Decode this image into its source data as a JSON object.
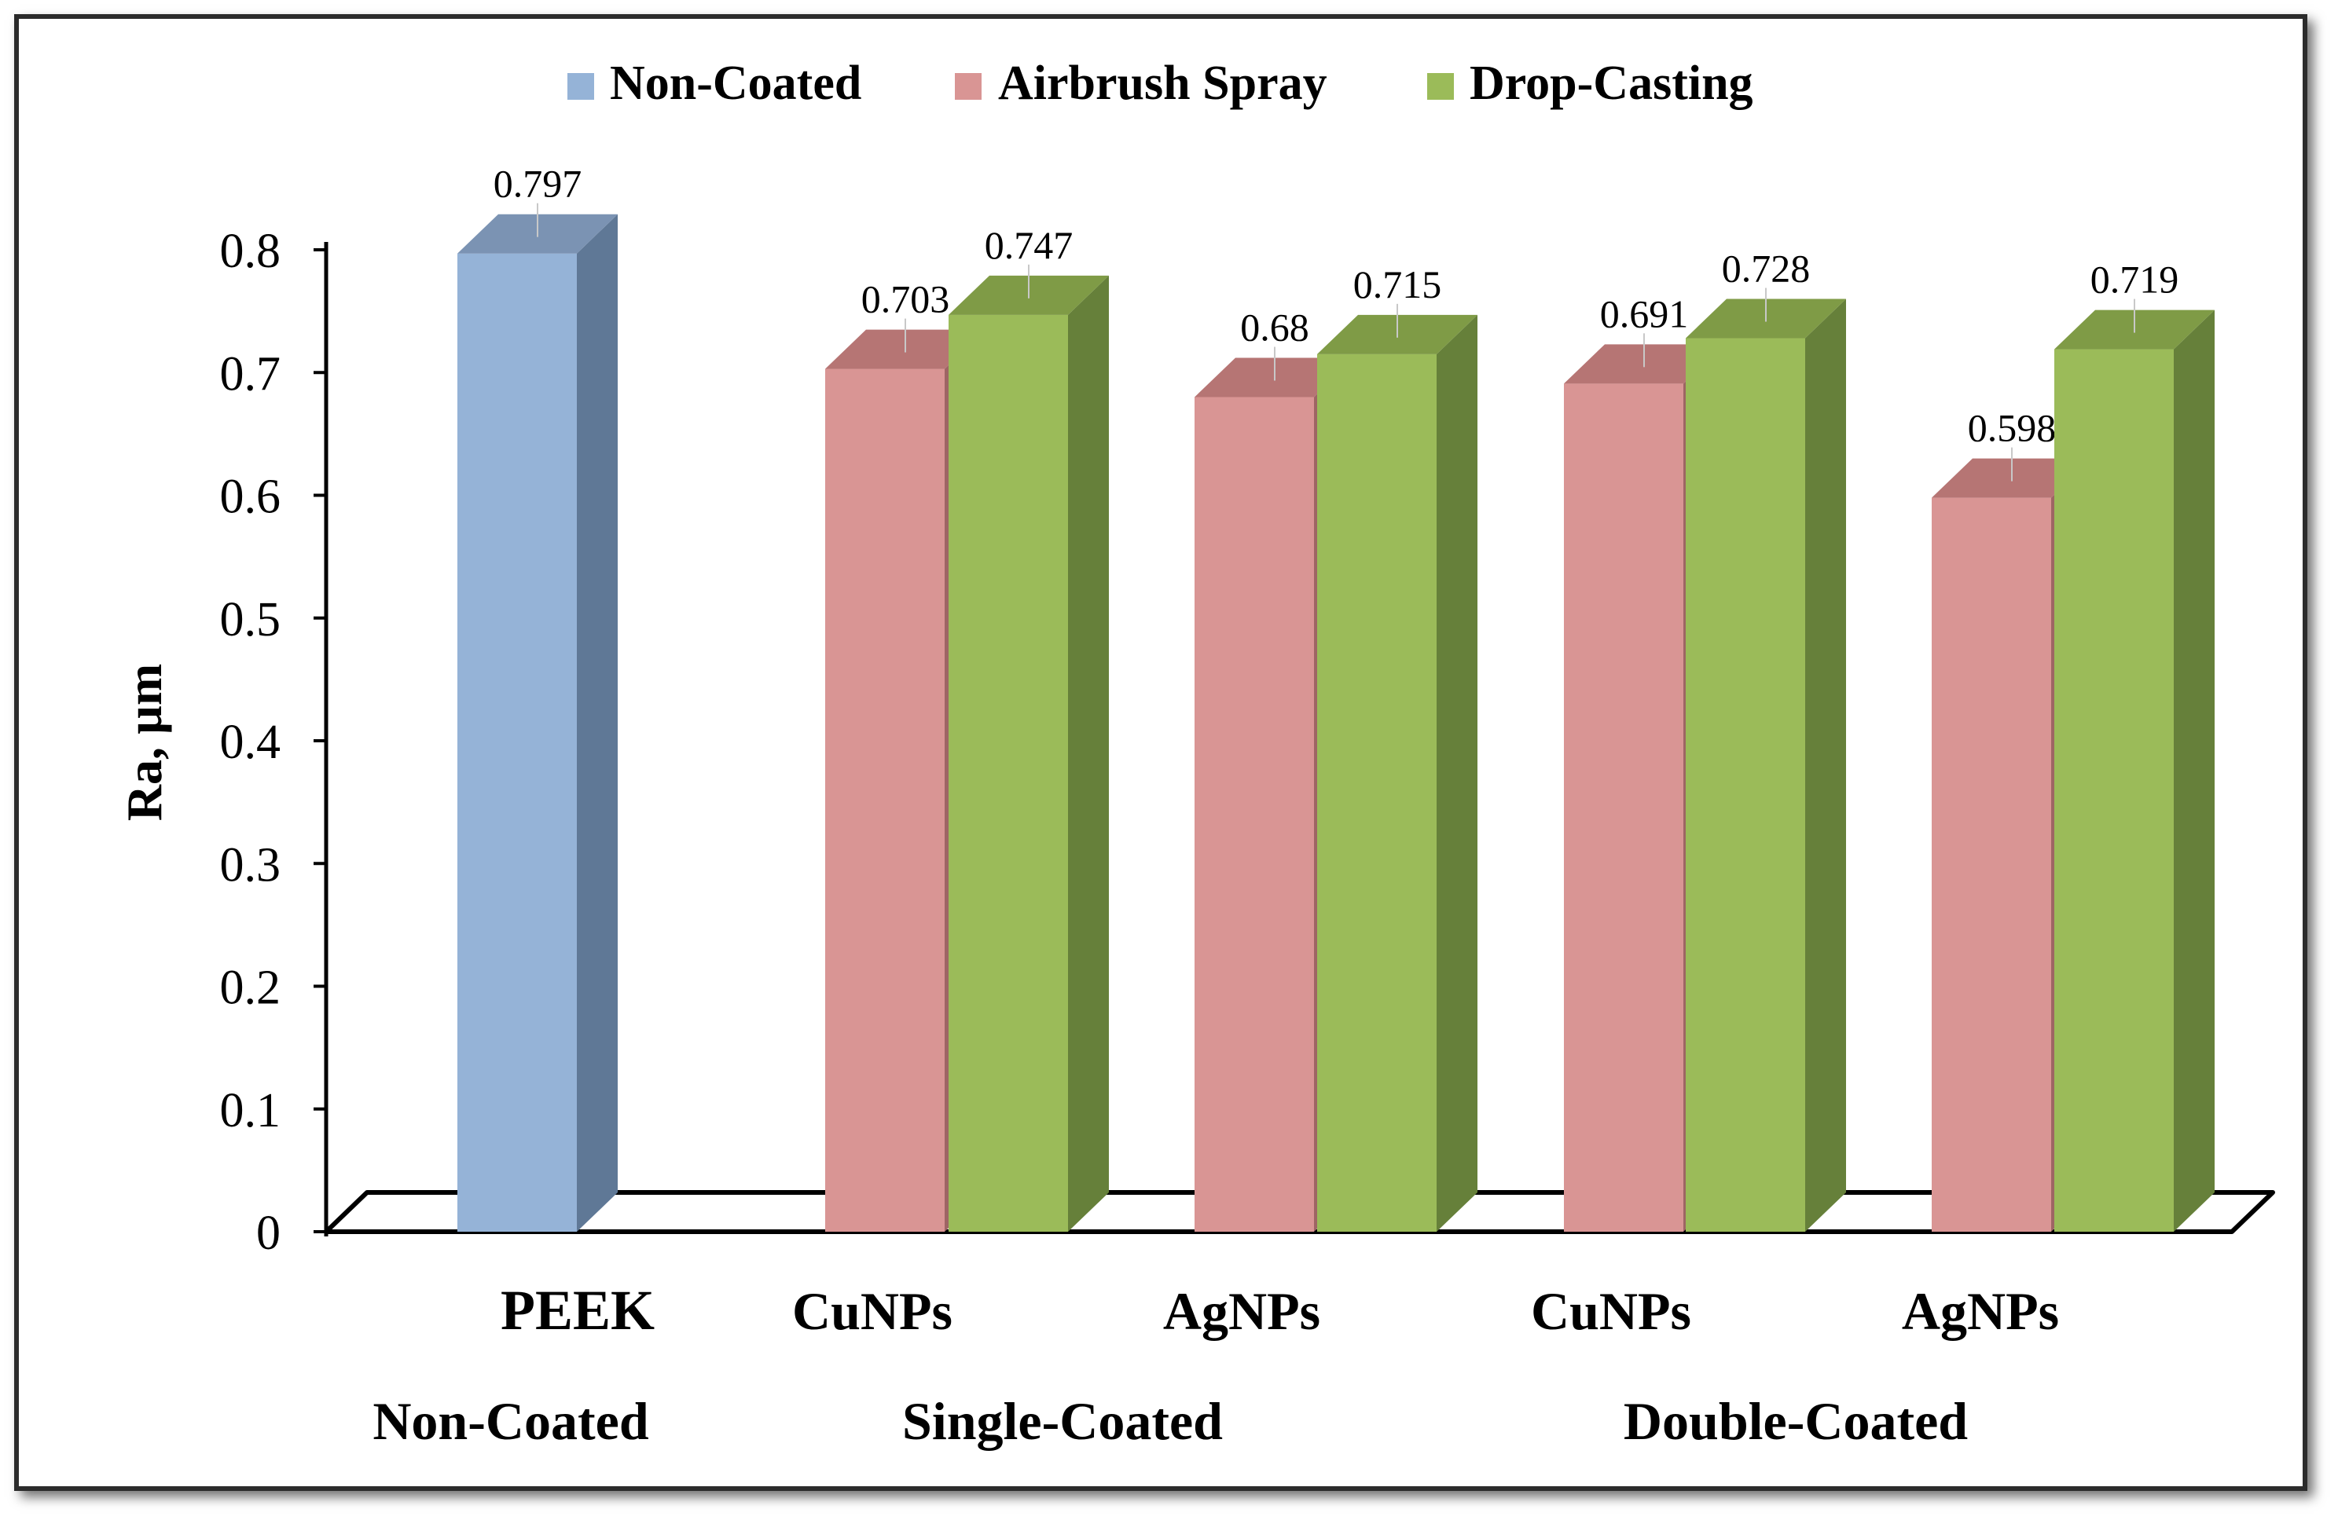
{
  "chart_data": {
    "type": "bar",
    "style": "3d-clustered-column",
    "ylabel": "Ra, µm",
    "ylim": [
      0,
      0.8
    ],
    "yticks": [
      "0",
      "0.1",
      "0.2",
      "0.3",
      "0.4",
      "0.5",
      "0.6",
      "0.7",
      "0.8"
    ],
    "legend_position": "top-center",
    "series": [
      {
        "name": "Non-Coated",
        "color": "#95B3D7",
        "side_color": "#5F7896",
        "top_color": "#7B93B3"
      },
      {
        "name": "Airbrush Spray",
        "color": "#D99594",
        "side_color": "#9E6564",
        "top_color": "#B67574"
      },
      {
        "name": "Drop-Casting",
        "color": "#9BBB59",
        "side_color": "#66803A",
        "top_color": "#7F9B46"
      }
    ],
    "categories": [
      {
        "label": "PEEK",
        "bars": [
          {
            "series": "Non-Coated",
            "value": 0.797,
            "label": "0.797"
          }
        ]
      },
      {
        "label": "CuNPs",
        "bars": [
          {
            "series": "Airbrush Spray",
            "value": 0.703,
            "label": "0.703"
          },
          {
            "series": "Drop-Casting",
            "value": 0.747,
            "label": "0.747"
          }
        ]
      },
      {
        "label": "AgNPs",
        "bars": [
          {
            "series": "Airbrush Spray",
            "value": 0.68,
            "label": "0.68"
          },
          {
            "series": "Drop-Casting",
            "value": 0.715,
            "label": "0.715"
          }
        ]
      },
      {
        "label": "CuNPs",
        "bars": [
          {
            "series": "Airbrush Spray",
            "value": 0.691,
            "label": "0.691"
          },
          {
            "series": "Drop-Casting",
            "value": 0.728,
            "label": "0.728"
          }
        ]
      },
      {
        "label": "AgNPs",
        "bars": [
          {
            "series": "Airbrush Spray",
            "value": 0.598,
            "label": "0.598"
          },
          {
            "series": "Drop-Casting",
            "value": 0.719,
            "label": "0.719"
          }
        ]
      }
    ],
    "groups": [
      {
        "label": "Non-Coated",
        "span": [
          0,
          0
        ]
      },
      {
        "label": "Single-Coated",
        "span": [
          1,
          2
        ]
      },
      {
        "label": "Double-Coated",
        "span": [
          3,
          4
        ]
      }
    ]
  }
}
